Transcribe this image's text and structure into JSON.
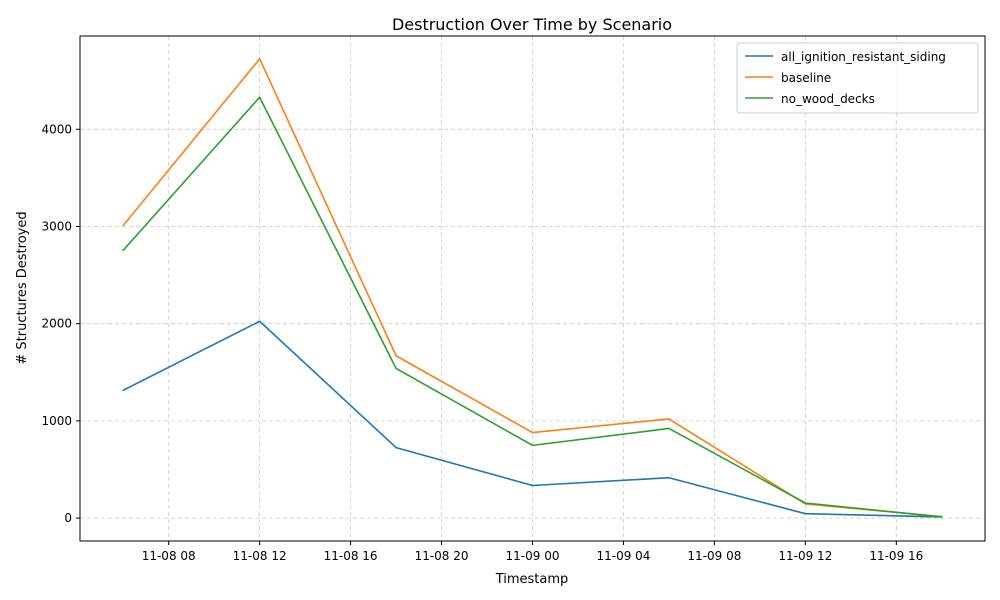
{
  "chart_data": {
    "type": "line",
    "title": "Destruction Over Time by Scenario",
    "xlabel": "Timestamp",
    "ylabel": "# Structures Destroyed",
    "x": [
      "11-08 06",
      "11-08 12",
      "11-08 18",
      "11-09 00",
      "11-09 06",
      "11-09 12",
      "11-09 18"
    ],
    "x_hours": [
      6,
      12,
      18,
      24,
      30,
      36,
      42
    ],
    "xticks": [
      {
        "hour": 8,
        "label": "11-08 08"
      },
      {
        "hour": 12,
        "label": "11-08 12"
      },
      {
        "hour": 16,
        "label": "11-08 16"
      },
      {
        "hour": 20,
        "label": "11-08 20"
      },
      {
        "hour": 24,
        "label": "11-09 00"
      },
      {
        "hour": 28,
        "label": "11-09 04"
      },
      {
        "hour": 32,
        "label": "11-09 08"
      },
      {
        "hour": 36,
        "label": "11-09 12"
      },
      {
        "hour": 40,
        "label": "11-09 16"
      }
    ],
    "yticks": [
      0,
      1000,
      2000,
      3000,
      4000
    ],
    "xlim": [
      4.1,
      43.9
    ],
    "ylim": [
      -236,
      4960
    ],
    "grid": true,
    "legend_position": "top-right",
    "series": [
      {
        "name": "all_ignition_resistant_siding",
        "color": "#1f77b4",
        "values": [
          1315,
          2025,
          725,
          335,
          415,
          45,
          12
        ]
      },
      {
        "name": "baseline",
        "color": "#ff7f0e",
        "values": [
          3010,
          4725,
          1670,
          880,
          1020,
          145,
          15
        ]
      },
      {
        "name": "no_wood_decks",
        "color": "#2ca02c",
        "values": [
          2755,
          4330,
          1540,
          748,
          922,
          155,
          12
        ]
      }
    ]
  }
}
